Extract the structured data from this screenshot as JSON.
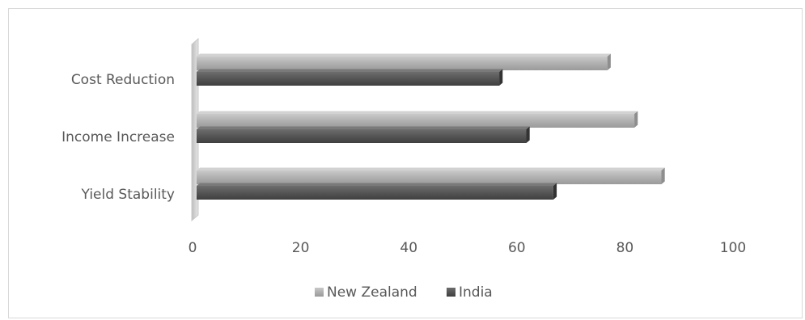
{
  "chart_data": {
    "type": "bar",
    "orientation": "horizontal",
    "style": "3d-clustered",
    "categories": [
      "Yield Stability",
      "Income Increase",
      "Cost Reduction"
    ],
    "series": [
      {
        "name": "New Zealand",
        "values": [
          86,
          81,
          76
        ],
        "color": "#b3b3b3"
      },
      {
        "name": "India",
        "values": [
          66,
          61,
          56
        ],
        "color": "#595959"
      }
    ],
    "xlim": [
      0,
      100
    ],
    "x_ticks": [
      "0",
      "20",
      "40",
      "60",
      "80",
      "100"
    ],
    "legend": {
      "position": "bottom"
    },
    "grid": false
  }
}
